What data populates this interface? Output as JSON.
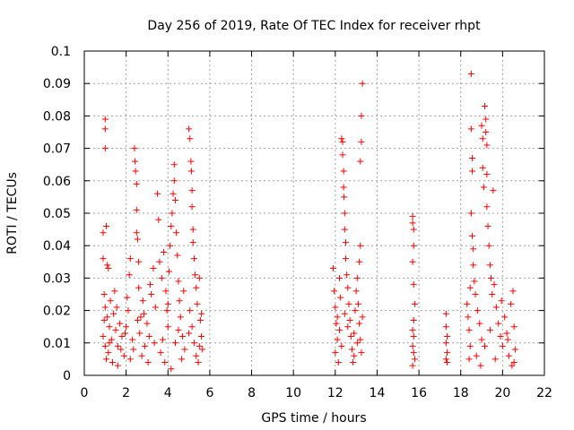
{
  "chart_data": {
    "type": "scatter",
    "title": "Day 256 of 2019, Rate Of TEC Index for receiver rhpt",
    "xlabel": "GPS time / hours",
    "ylabel": "ROTI / TECUs",
    "xlim": [
      0,
      22
    ],
    "ylim": [
      0,
      0.1
    ],
    "x_ticks": [
      "0",
      "2",
      "4",
      "6",
      "8",
      "10",
      "12",
      "14",
      "16",
      "18",
      "20",
      "22"
    ],
    "y_ticks": [
      "0",
      "0.01",
      "0.02",
      "0.03",
      "0.04",
      "0.05",
      "0.06",
      "0.07",
      "0.08",
      "0.09",
      "0.1"
    ],
    "x_tick_values": [
      0,
      2,
      4,
      6,
      8,
      10,
      12,
      14,
      16,
      18,
      20,
      22
    ],
    "y_tick_values": [
      0,
      0.01,
      0.02,
      0.03,
      0.04,
      0.05,
      0.06,
      0.07,
      0.08,
      0.09,
      0.1
    ],
    "grid": true,
    "marker": "+",
    "color": "#ff0000",
    "series": [
      {
        "name": "ROTI",
        "points": [
          [
            0.9,
            0.044
          ],
          [
            0.9,
            0.036
          ],
          [
            1.0,
            0.079
          ],
          [
            1.0,
            0.076
          ],
          [
            1.0,
            0.07
          ],
          [
            1.05,
            0.046
          ],
          [
            1.1,
            0.034
          ],
          [
            1.15,
            0.033
          ],
          [
            0.95,
            0.025
          ],
          [
            1.0,
            0.021
          ],
          [
            1.1,
            0.018
          ],
          [
            1.2,
            0.015
          ],
          [
            0.9,
            0.012
          ],
          [
            1.0,
            0.009
          ],
          [
            1.15,
            0.007
          ],
          [
            1.3,
            0.011
          ],
          [
            1.4,
            0.019
          ],
          [
            1.5,
            0.014
          ],
          [
            1.6,
            0.009
          ],
          [
            1.7,
            0.016
          ],
          [
            1.8,
            0.012
          ],
          [
            1.9,
            0.006
          ],
          [
            1.25,
            0.023
          ],
          [
            1.45,
            0.026
          ],
          [
            1.05,
            0.005
          ],
          [
            1.35,
            0.004
          ],
          [
            1.55,
            0.021
          ],
          [
            1.75,
            0.008
          ],
          [
            1.95,
            0.013
          ],
          [
            0.95,
            0.017
          ],
          [
            1.2,
            0.01
          ],
          [
            1.6,
            0.003
          ],
          [
            2.0,
            0.015
          ],
          [
            2.1,
            0.02
          ],
          [
            2.15,
            0.031
          ],
          [
            2.2,
            0.036
          ],
          [
            2.3,
            0.011
          ],
          [
            2.4,
            0.07
          ],
          [
            2.42,
            0.066
          ],
          [
            2.45,
            0.063
          ],
          [
            2.5,
            0.059
          ],
          [
            2.5,
            0.051
          ],
          [
            2.5,
            0.044
          ],
          [
            2.55,
            0.042
          ],
          [
            2.6,
            0.035
          ],
          [
            2.6,
            0.027
          ],
          [
            2.7,
            0.018
          ],
          [
            2.8,
            0.023
          ],
          [
            2.9,
            0.009
          ],
          [
            3.0,
            0.016
          ],
          [
            3.1,
            0.012
          ],
          [
            3.2,
            0.025
          ],
          [
            3.3,
            0.033
          ],
          [
            3.4,
            0.021
          ],
          [
            2.2,
            0.005
          ],
          [
            2.35,
            0.008
          ],
          [
            2.65,
            0.013
          ],
          [
            2.75,
            0.006
          ],
          [
            2.85,
            0.019
          ],
          [
            3.05,
            0.004
          ],
          [
            3.15,
            0.028
          ],
          [
            3.35,
            0.01
          ],
          [
            2.05,
            0.024
          ],
          [
            2.55,
            0.017
          ],
          [
            3.5,
            0.056
          ],
          [
            3.55,
            0.048
          ],
          [
            3.6,
            0.035
          ],
          [
            3.7,
            0.03
          ],
          [
            3.8,
            0.038
          ],
          [
            3.9,
            0.026
          ],
          [
            3.95,
            0.02
          ],
          [
            4.0,
            0.015
          ],
          [
            4.05,
            0.032
          ],
          [
            4.1,
            0.04
          ],
          [
            4.15,
            0.046
          ],
          [
            4.2,
            0.05
          ],
          [
            4.25,
            0.056
          ],
          [
            4.3,
            0.06
          ],
          [
            4.3,
            0.065
          ],
          [
            4.35,
            0.054
          ],
          [
            4.4,
            0.044
          ],
          [
            4.45,
            0.037
          ],
          [
            4.5,
            0.029
          ],
          [
            4.55,
            0.023
          ],
          [
            4.6,
            0.018
          ],
          [
            4.7,
            0.012
          ],
          [
            4.8,
            0.008
          ],
          [
            3.65,
            0.007
          ],
          [
            3.75,
            0.011
          ],
          [
            3.85,
            0.004
          ],
          [
            4.0,
            0.022
          ],
          [
            4.15,
            0.002
          ],
          [
            4.35,
            0.01
          ],
          [
            4.5,
            0.014
          ],
          [
            4.65,
            0.005
          ],
          [
            4.75,
            0.026
          ],
          [
            5.0,
            0.076
          ],
          [
            5.05,
            0.073
          ],
          [
            5.1,
            0.066
          ],
          [
            5.12,
            0.063
          ],
          [
            5.15,
            0.057
          ],
          [
            5.15,
            0.052
          ],
          [
            5.2,
            0.045
          ],
          [
            5.2,
            0.041
          ],
          [
            5.25,
            0.036
          ],
          [
            5.3,
            0.031
          ],
          [
            5.35,
            0.027
          ],
          [
            5.4,
            0.022
          ],
          [
            5.5,
            0.03
          ],
          [
            5.55,
            0.017
          ],
          [
            5.6,
            0.012
          ],
          [
            5.65,
            0.008
          ],
          [
            5.05,
            0.02
          ],
          [
            5.15,
            0.015
          ],
          [
            5.25,
            0.01
          ],
          [
            5.35,
            0.006
          ],
          [
            5.45,
            0.004
          ],
          [
            5.6,
            0.019
          ],
          [
            5.0,
            0.013
          ],
          [
            5.5,
            0.009
          ],
          [
            11.9,
            0.033
          ],
          [
            11.95,
            0.026
          ],
          [
            12.0,
            0.021
          ],
          [
            12.05,
            0.016
          ],
          [
            12.1,
            0.011
          ],
          [
            12.0,
            0.007
          ],
          [
            12.15,
            0.004
          ],
          [
            12.2,
            0.03
          ],
          [
            12.25,
            0.024
          ],
          [
            12.3,
            0.073
          ],
          [
            12.35,
            0.072
          ],
          [
            12.35,
            0.068
          ],
          [
            12.4,
            0.063
          ],
          [
            12.4,
            0.058
          ],
          [
            12.42,
            0.055
          ],
          [
            12.45,
            0.05
          ],
          [
            12.45,
            0.045
          ],
          [
            12.5,
            0.041
          ],
          [
            12.5,
            0.036
          ],
          [
            12.55,
            0.031
          ],
          [
            12.6,
            0.027
          ],
          [
            12.65,
            0.022
          ],
          [
            12.7,
            0.017
          ],
          [
            12.75,
            0.012
          ],
          [
            12.8,
            0.008
          ],
          [
            12.85,
            0.004
          ],
          [
            12.9,
            0.013
          ],
          [
            12.95,
            0.02
          ],
          [
            13.0,
            0.026
          ],
          [
            13.05,
            0.03
          ],
          [
            13.1,
            0.022
          ],
          [
            13.15,
            0.016
          ],
          [
            13.2,
            0.011
          ],
          [
            13.25,
            0.007
          ],
          [
            13.3,
            0.09
          ],
          [
            13.25,
            0.08
          ],
          [
            13.25,
            0.072
          ],
          [
            13.2,
            0.066
          ],
          [
            13.2,
            0.04
          ],
          [
            13.15,
            0.035
          ],
          [
            12.1,
            0.018
          ],
          [
            12.2,
            0.014
          ],
          [
            12.3,
            0.009
          ],
          [
            12.6,
            0.015
          ],
          [
            12.9,
            0.006
          ],
          [
            13.05,
            0.01
          ],
          [
            13.3,
            0.018
          ],
          [
            12.45,
            0.019
          ],
          [
            15.7,
            0.049
          ],
          [
            15.7,
            0.047
          ],
          [
            15.75,
            0.045
          ],
          [
            15.75,
            0.04
          ],
          [
            15.7,
            0.035
          ],
          [
            15.75,
            0.028
          ],
          [
            15.8,
            0.022
          ],
          [
            15.75,
            0.017
          ],
          [
            15.7,
            0.014
          ],
          [
            15.75,
            0.012
          ],
          [
            15.7,
            0.009
          ],
          [
            15.75,
            0.007
          ],
          [
            15.8,
            0.005
          ],
          [
            15.7,
            0.003
          ],
          [
            17.3,
            0.019
          ],
          [
            17.3,
            0.015
          ],
          [
            17.35,
            0.012
          ],
          [
            17.3,
            0.01
          ],
          [
            17.35,
            0.007
          ],
          [
            17.3,
            0.005
          ],
          [
            17.35,
            0.004
          ],
          [
            18.3,
            0.022
          ],
          [
            18.35,
            0.018
          ],
          [
            18.4,
            0.014
          ],
          [
            18.45,
            0.009
          ],
          [
            18.4,
            0.005
          ],
          [
            18.5,
            0.093
          ],
          [
            18.5,
            0.076
          ],
          [
            18.55,
            0.067
          ],
          [
            18.55,
            0.063
          ],
          [
            18.5,
            0.05
          ],
          [
            18.55,
            0.043
          ],
          [
            18.6,
            0.039
          ],
          [
            18.6,
            0.034
          ],
          [
            18.65,
            0.029
          ],
          [
            18.7,
            0.025
          ],
          [
            18.8,
            0.02
          ],
          [
            18.9,
            0.016
          ],
          [
            19.0,
            0.011
          ],
          [
            19.0,
            0.077
          ],
          [
            19.05,
            0.073
          ],
          [
            19.05,
            0.064
          ],
          [
            19.1,
            0.058
          ],
          [
            19.15,
            0.083
          ],
          [
            19.2,
            0.079
          ],
          [
            19.2,
            0.075
          ],
          [
            19.25,
            0.071
          ],
          [
            19.25,
            0.062
          ],
          [
            19.25,
            0.052
          ],
          [
            19.3,
            0.046
          ],
          [
            19.35,
            0.04
          ],
          [
            19.4,
            0.034
          ],
          [
            19.45,
            0.03
          ],
          [
            19.5,
            0.025
          ],
          [
            19.55,
            0.057
          ],
          [
            19.6,
            0.028
          ],
          [
            19.7,
            0.021
          ],
          [
            19.8,
            0.016
          ],
          [
            19.9,
            0.012
          ],
          [
            20.0,
            0.009
          ],
          [
            20.1,
            0.018
          ],
          [
            20.2,
            0.013
          ],
          [
            20.3,
            0.006
          ],
          [
            20.4,
            0.022
          ],
          [
            20.5,
            0.026
          ],
          [
            20.55,
            0.015
          ],
          [
            20.6,
            0.008
          ],
          [
            20.55,
            0.004
          ],
          [
            18.45,
            0.027
          ],
          [
            18.75,
            0.006
          ],
          [
            18.95,
            0.003
          ],
          [
            19.15,
            0.009
          ],
          [
            19.4,
            0.014
          ],
          [
            19.65,
            0.005
          ],
          [
            19.95,
            0.023
          ],
          [
            20.25,
            0.011
          ],
          [
            20.45,
            0.003
          ]
        ]
      }
    ]
  }
}
